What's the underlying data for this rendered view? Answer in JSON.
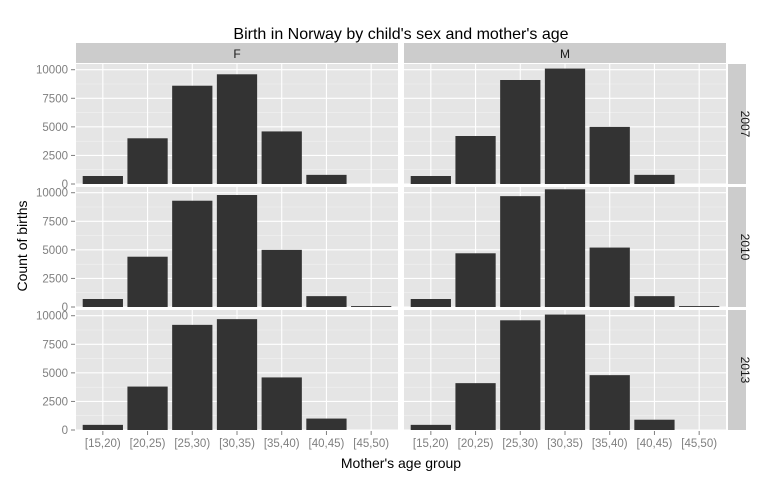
{
  "chart_data": {
    "type": "bar",
    "title": "Birth in Norway by child's sex and mother's age",
    "xlabel": "Mother's age group",
    "ylabel": "Count of births",
    "categories": [
      "[15,20)",
      "[20,25)",
      "[25,30)",
      "[30,35)",
      "[35,40)",
      "[40,45)",
      "[45,50)"
    ],
    "y_ticks": [
      "0",
      "2500",
      "5000",
      "7500",
      "10000"
    ],
    "ylim": [
      0,
      10500
    ],
    "facet_cols": [
      "F",
      "M"
    ],
    "facet_rows": [
      "2007",
      "2010",
      "2013"
    ],
    "panels": [
      {
        "col": "F",
        "row": "2007",
        "values": [
          700,
          4000,
          8600,
          9600,
          4600,
          800,
          0
        ]
      },
      {
        "col": "M",
        "row": "2007",
        "values": [
          700,
          4200,
          9100,
          10100,
          5000,
          800,
          0
        ]
      },
      {
        "col": "F",
        "row": "2010",
        "values": [
          700,
          4400,
          9300,
          9800,
          5000,
          950,
          80
        ]
      },
      {
        "col": "M",
        "row": "2010",
        "values": [
          700,
          4700,
          9700,
          10300,
          5200,
          950,
          80
        ]
      },
      {
        "col": "F",
        "row": "2013",
        "values": [
          450,
          3800,
          9200,
          9700,
          4600,
          1000,
          0
        ]
      },
      {
        "col": "M",
        "row": "2013",
        "values": [
          450,
          4100,
          9600,
          10100,
          4800,
          900,
          0
        ]
      }
    ],
    "grid": true,
    "legend": "none",
    "colors": {
      "bar": "#333333",
      "panel_bg": "#e5e5e5",
      "strip_bg": "#cccccc",
      "grid_major": "#ffffff",
      "grid_minor": "#f2f2f2",
      "tick_text": "#7f7f7f"
    }
  }
}
